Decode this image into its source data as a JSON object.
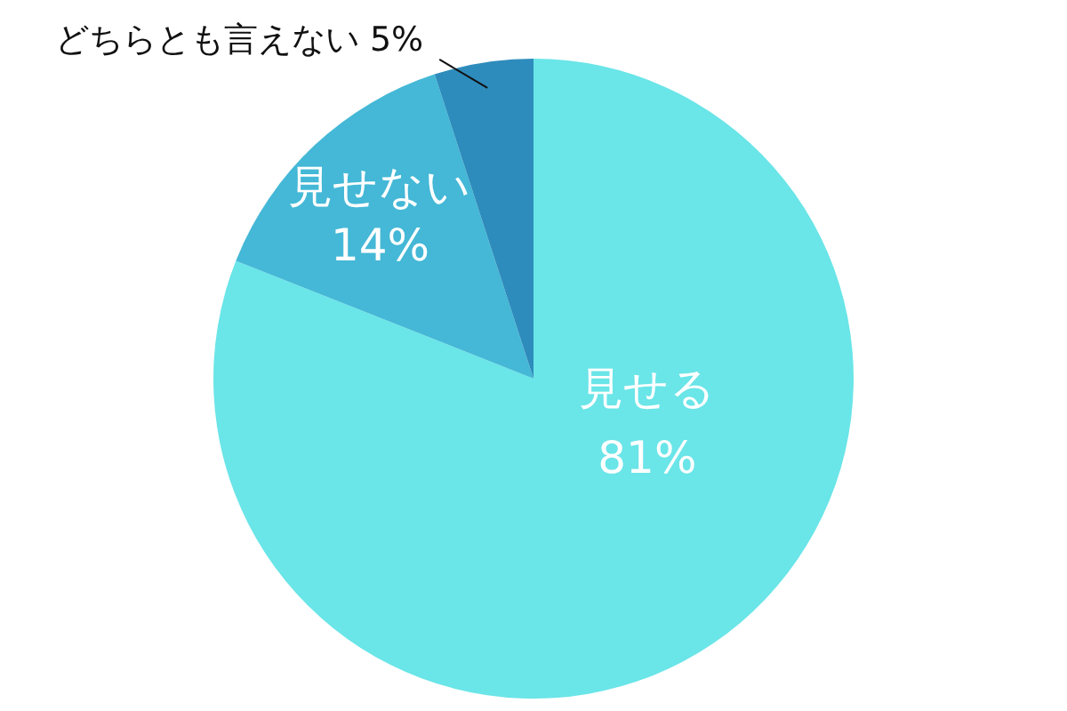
{
  "chart_data": {
    "type": "pie",
    "categories": [
      "見せる",
      "見せない",
      "どちらとも言えない"
    ],
    "values": [
      81,
      14,
      5
    ],
    "colors": [
      "#6ae5e8",
      "#44b8d6",
      "#2e8cbc"
    ],
    "value_labels": [
      "81%",
      "14%",
      "5%"
    ]
  }
}
